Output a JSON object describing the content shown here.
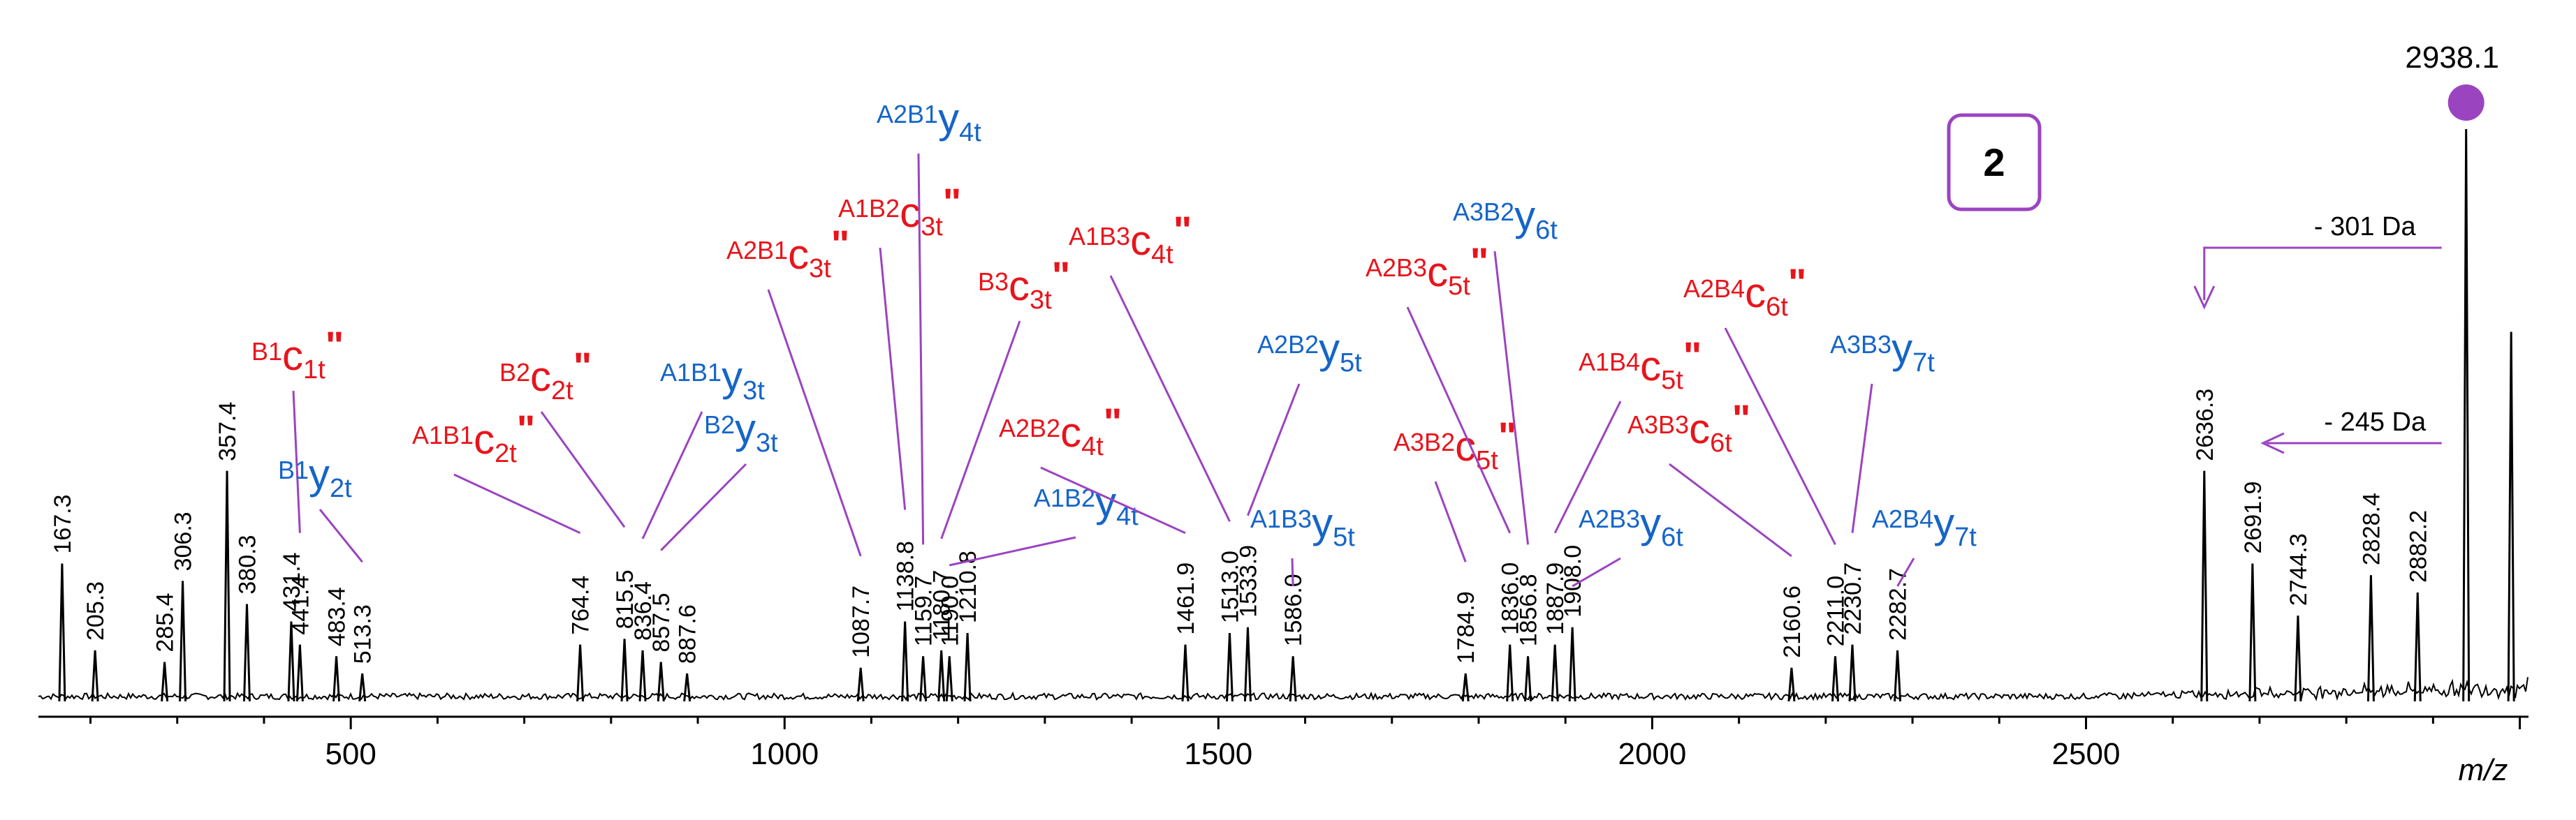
{
  "chart_data": {
    "type": "line",
    "title": "",
    "xlabel": "m/z",
    "ylabel": "",
    "xlim": [
      140,
      3010
    ],
    "ylim": [
      0,
      100
    ],
    "xticks": [
      500,
      1000,
      1500,
      2000,
      2500
    ],
    "xtick_labels": [
      "500",
      "1000",
      "1500",
      "2000",
      "2500"
    ],
    "panel_label": "2",
    "precursor": {
      "mz": 2938.1,
      "label": "2938.1"
    },
    "peaks": [
      {
        "mz": 167.3,
        "h": 25,
        "label": "167.3"
      },
      {
        "mz": 205.3,
        "h": 10,
        "label": "205.3"
      },
      {
        "mz": 285.4,
        "h": 8,
        "label": "285.4"
      },
      {
        "mz": 306.3,
        "h": 22,
        "label": "306.3"
      },
      {
        "mz": 357.4,
        "h": 41,
        "label": "357.4"
      },
      {
        "mz": 380.3,
        "h": 18,
        "label": "380.3"
      },
      {
        "mz": 431.4,
        "h": 15,
        "label": "431.4"
      },
      {
        "mz": 441.4,
        "h": 11,
        "label": "441.4"
      },
      {
        "mz": 483.4,
        "h": 9,
        "label": "483.4"
      },
      {
        "mz": 513.3,
        "h": 6,
        "label": "513.3"
      },
      {
        "mz": 764.4,
        "h": 11,
        "label": "764.4"
      },
      {
        "mz": 815.5,
        "h": 12,
        "label": "815.5"
      },
      {
        "mz": 836.4,
        "h": 10,
        "label": "836.4"
      },
      {
        "mz": 857.5,
        "h": 8,
        "label": "857.5"
      },
      {
        "mz": 887.6,
        "h": 6,
        "label": "887.6"
      },
      {
        "mz": 1087.7,
        "h": 7,
        "label": "1087.7"
      },
      {
        "mz": 1138.8,
        "h": 15,
        "label": "1138.8"
      },
      {
        "mz": 1159.7,
        "h": 9,
        "label": "1159.7"
      },
      {
        "mz": 1180.7,
        "h": 10,
        "label": "1180.7"
      },
      {
        "mz": 1190.0,
        "h": 9,
        "label": "1190.0"
      },
      {
        "mz": 1210.8,
        "h": 13,
        "label": "1210.8"
      },
      {
        "mz": 1461.9,
        "h": 11,
        "label": "1461.9"
      },
      {
        "mz": 1513.0,
        "h": 13,
        "label": "1513.0"
      },
      {
        "mz": 1533.9,
        "h": 14,
        "label": "1533.9"
      },
      {
        "mz": 1586.0,
        "h": 9,
        "label": "1586.0"
      },
      {
        "mz": 1784.9,
        "h": 6,
        "label": "1784.9"
      },
      {
        "mz": 1836.0,
        "h": 11,
        "label": "1836.0"
      },
      {
        "mz": 1856.8,
        "h": 9,
        "label": "1856.8"
      },
      {
        "mz": 1887.9,
        "h": 11,
        "label": "1887.9"
      },
      {
        "mz": 1908.0,
        "h": 14,
        "label": "1908.0"
      },
      {
        "mz": 2160.6,
        "h": 7,
        "label": "2160.6"
      },
      {
        "mz": 2211.0,
        "h": 9,
        "label": "2211.0"
      },
      {
        "mz": 2230.7,
        "h": 11,
        "label": "2230.7"
      },
      {
        "mz": 2282.7,
        "h": 10,
        "label": "2282.7"
      },
      {
        "mz": 2636.3,
        "h": 41,
        "label": "2636.3"
      },
      {
        "mz": 2691.9,
        "h": 25,
        "label": "2691.9"
      },
      {
        "mz": 2744.3,
        "h": 16,
        "label": "2744.3"
      },
      {
        "mz": 2828.4,
        "h": 23,
        "label": "2828.4"
      },
      {
        "mz": 2882.2,
        "h": 20,
        "label": "2882.2"
      },
      {
        "mz": 2938.1,
        "h": 100,
        "label": ""
      },
      {
        "mz": 2990.0,
        "h": 65,
        "label": ""
      }
    ],
    "annotations": [
      {
        "prefix": "B1",
        "ion": "c",
        "sub": "1t",
        "mark": "\"",
        "color": "red",
        "target_mz": 441.4
      },
      {
        "prefix": "B1",
        "ion": "y",
        "sub": "2t",
        "mark": "",
        "color": "blue",
        "target_mz": 513.3
      },
      {
        "prefix": "A1B1",
        "ion": "c",
        "sub": "2t",
        "mark": "\"",
        "color": "red",
        "target_mz": 764.4
      },
      {
        "prefix": "B2",
        "ion": "c",
        "sub": "2t",
        "mark": "\"",
        "color": "red",
        "target_mz": 815.5
      },
      {
        "prefix": "A1B1",
        "ion": "y",
        "sub": "3t",
        "mark": "",
        "color": "blue",
        "target_mz": 836.4
      },
      {
        "prefix": "B2",
        "ion": "y",
        "sub": "3t",
        "mark": "",
        "color": "blue",
        "target_mz": 857.5
      },
      {
        "prefix": "A2B1",
        "ion": "c",
        "sub": "3t",
        "mark": "\"",
        "color": "red",
        "target_mz": 1087.7
      },
      {
        "prefix": "A1B2",
        "ion": "c",
        "sub": "3t",
        "mark": "\"",
        "color": "red",
        "target_mz": 1138.8
      },
      {
        "prefix": "A2B1",
        "ion": "y",
        "sub": "4t",
        "mark": "",
        "color": "blue",
        "target_mz": 1159.7
      },
      {
        "prefix": "B3",
        "ion": "c",
        "sub": "3t",
        "mark": "\"",
        "color": "red",
        "target_mz": 1180.7
      },
      {
        "prefix": "A1B2",
        "ion": "y",
        "sub": "4t",
        "mark": "",
        "color": "blue",
        "target_mz": 1190.0
      },
      {
        "prefix": "A2B2",
        "ion": "c",
        "sub": "4t",
        "mark": "\"",
        "color": "red",
        "target_mz": 1461.9
      },
      {
        "prefix": "A1B3",
        "ion": "c",
        "sub": "4t",
        "mark": "\"",
        "color": "red",
        "target_mz": 1513.0
      },
      {
        "prefix": "A2B2",
        "ion": "y",
        "sub": "5t",
        "mark": "",
        "color": "blue",
        "target_mz": 1533.9
      },
      {
        "prefix": "A1B3",
        "ion": "y",
        "sub": "5t",
        "mark": "",
        "color": "blue",
        "target_mz": 1586.0
      },
      {
        "prefix": "A3B2",
        "ion": "c",
        "sub": "5t",
        "mark": "\"",
        "color": "red",
        "target_mz": 1784.9
      },
      {
        "prefix": "A2B3",
        "ion": "c",
        "sub": "5t",
        "mark": "\"",
        "color": "red",
        "target_mz": 1836.0
      },
      {
        "prefix": "A3B2",
        "ion": "y",
        "sub": "6t",
        "mark": "",
        "color": "blue",
        "target_mz": 1856.8
      },
      {
        "prefix": "A1B4",
        "ion": "c",
        "sub": "5t",
        "mark": "\"",
        "color": "red",
        "target_mz": 1887.9
      },
      {
        "prefix": "A2B3",
        "ion": "y",
        "sub": "6t",
        "mark": "",
        "color": "blue",
        "target_mz": 1908.0
      },
      {
        "prefix": "A3B3",
        "ion": "c",
        "sub": "6t",
        "mark": "\"",
        "color": "red",
        "target_mz": 2160.6
      },
      {
        "prefix": "A2B4",
        "ion": "c",
        "sub": "6t",
        "mark": "\"",
        "color": "red",
        "target_mz": 2211.0
      },
      {
        "prefix": "A3B3",
        "ion": "y",
        "sub": "7t",
        "mark": "",
        "color": "blue",
        "target_mz": 2230.7
      },
      {
        "prefix": "A2B4",
        "ion": "y",
        "sub": "7t",
        "mark": "",
        "color": "blue",
        "target_mz": 2282.7
      }
    ],
    "losses": [
      {
        "label": "- 301 Da",
        "from_mz": 2938.1,
        "to_mz": 2636.3
      },
      {
        "label": "- 245 Da",
        "from_mz": 2938.1,
        "to_mz": 2691.9
      }
    ]
  },
  "colors": {
    "red": "#e8141b",
    "blue": "#1565c8",
    "purple": "#9b44c0",
    "black": "#000000"
  }
}
